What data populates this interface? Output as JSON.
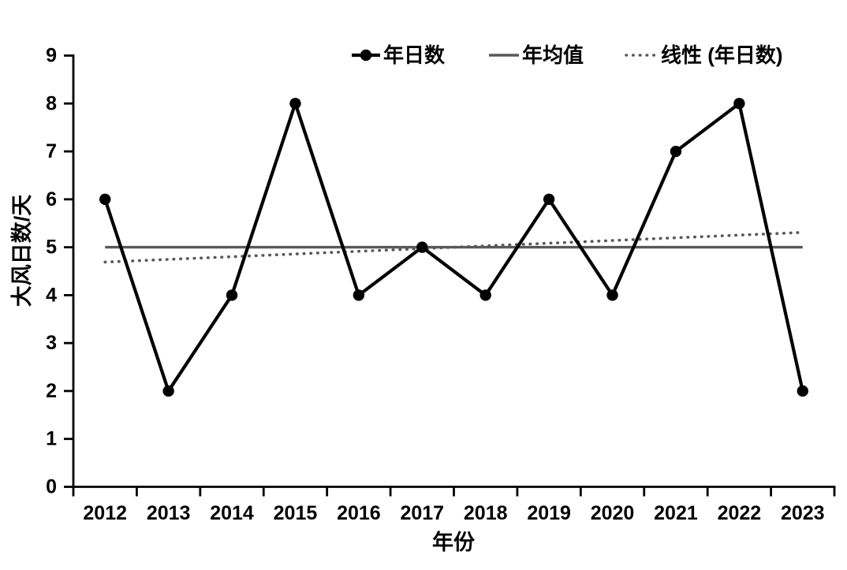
{
  "chart_data": {
    "type": "line",
    "title": "",
    "categories": [
      "2012",
      "2013",
      "2014",
      "2015",
      "2016",
      "2017",
      "2018",
      "2019",
      "2020",
      "2021",
      "2022",
      "2023"
    ],
    "series": [
      {
        "name": "年日数",
        "render": "line-with-markers",
        "values": [
          6,
          2,
          4,
          8,
          4,
          5,
          4,
          6,
          4,
          7,
          8,
          2
        ],
        "color": "#000000"
      },
      {
        "name": "年均值",
        "render": "horizontal-mean-line",
        "value": 5,
        "color": "#595959"
      },
      {
        "name": "线性 (年日数)",
        "render": "dotted-trend-line",
        "start": 4.69,
        "end": 5.31,
        "color": "#595959"
      }
    ],
    "xlabel": "年份",
    "ylabel": "大风日数/天",
    "ylim": [
      0,
      9
    ],
    "ytick_step": 1,
    "grid": false,
    "legend_position": "top",
    "axis_color": "#000000",
    "background_color": "#ffffff"
  }
}
